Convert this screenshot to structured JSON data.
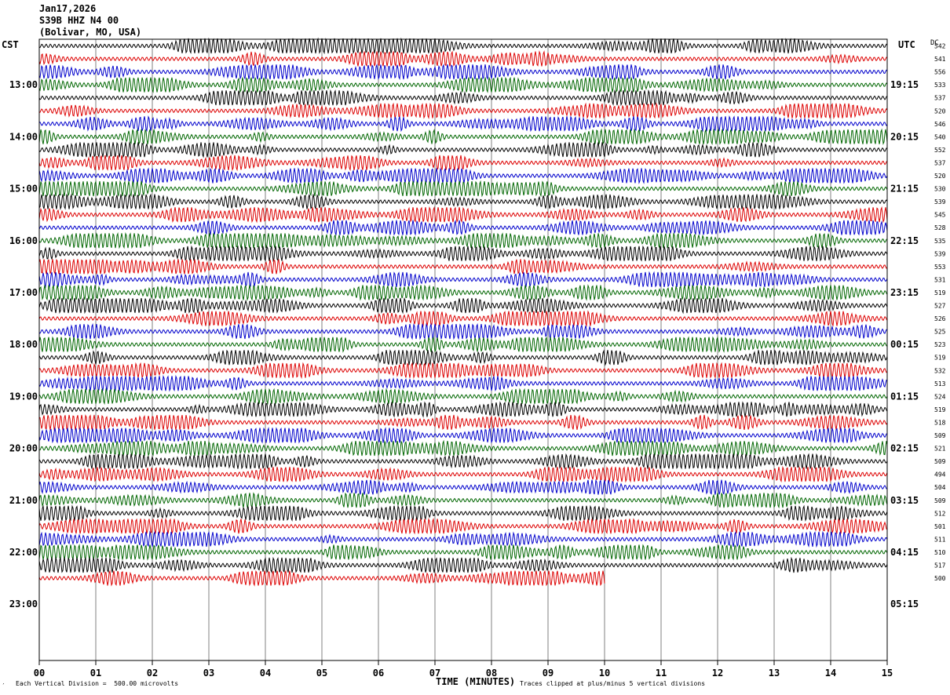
{
  "header": {
    "date": "Jan17,2026",
    "station": "S39B HHZ N4 00",
    "location": "(Bolivar, MO, USA)"
  },
  "left_axis_label": "CST",
  "right_axis_label": "UTC",
  "dc_label": "DC",
  "footer": {
    "scale_note": "Each Vertical Division =  500.00 microvolts",
    "x_title": "TIME (MINUTES)",
    "clip_note": "Traces clipped at plus/minus 5 vertical divisions",
    "corner_mark": "′"
  },
  "colors": {
    "trace_cycle": [
      "#000000",
      "#dd0000",
      "#0000cc",
      "#006600"
    ],
    "grid": "#808080",
    "background": "#ffffff"
  },
  "chart_data": {
    "type": "line",
    "title": "",
    "xlabel": "TIME (MINUTES)",
    "ylabel": "",
    "xlim": [
      0,
      15
    ],
    "x_ticks": [
      "00",
      "01",
      "02",
      "03",
      "04",
      "05",
      "06",
      "07",
      "08",
      "09",
      "10",
      "11",
      "12",
      "13",
      "14",
      "15"
    ],
    "left_hour_labels": [
      "13:00",
      "14:00",
      "15:00",
      "16:00",
      "17:00",
      "18:00",
      "19:00",
      "20:00",
      "21:00",
      "22:00",
      "23:00"
    ],
    "right_hour_labels": [
      "19:15",
      "20:15",
      "21:15",
      "22:15",
      "23:15",
      "00:15",
      "01:15",
      "02:15",
      "03:15",
      "04:15",
      "05:15"
    ],
    "traces_per_hour": 4,
    "first_trace_minute_offset_cst": "12:15",
    "dc_values": [
      542,
      541,
      556,
      533,
      537,
      520,
      546,
      540,
      552,
      537,
      520,
      530,
      539,
      545,
      528,
      535,
      539,
      553,
      531,
      519,
      527,
      526,
      525,
      523,
      519,
      532,
      513,
      524,
      519,
      518,
      509,
      521,
      509,
      494,
      504,
      509,
      512,
      501,
      511,
      510,
      517,
      500
    ],
    "last_trace_end_minute": 10,
    "grid": true
  }
}
